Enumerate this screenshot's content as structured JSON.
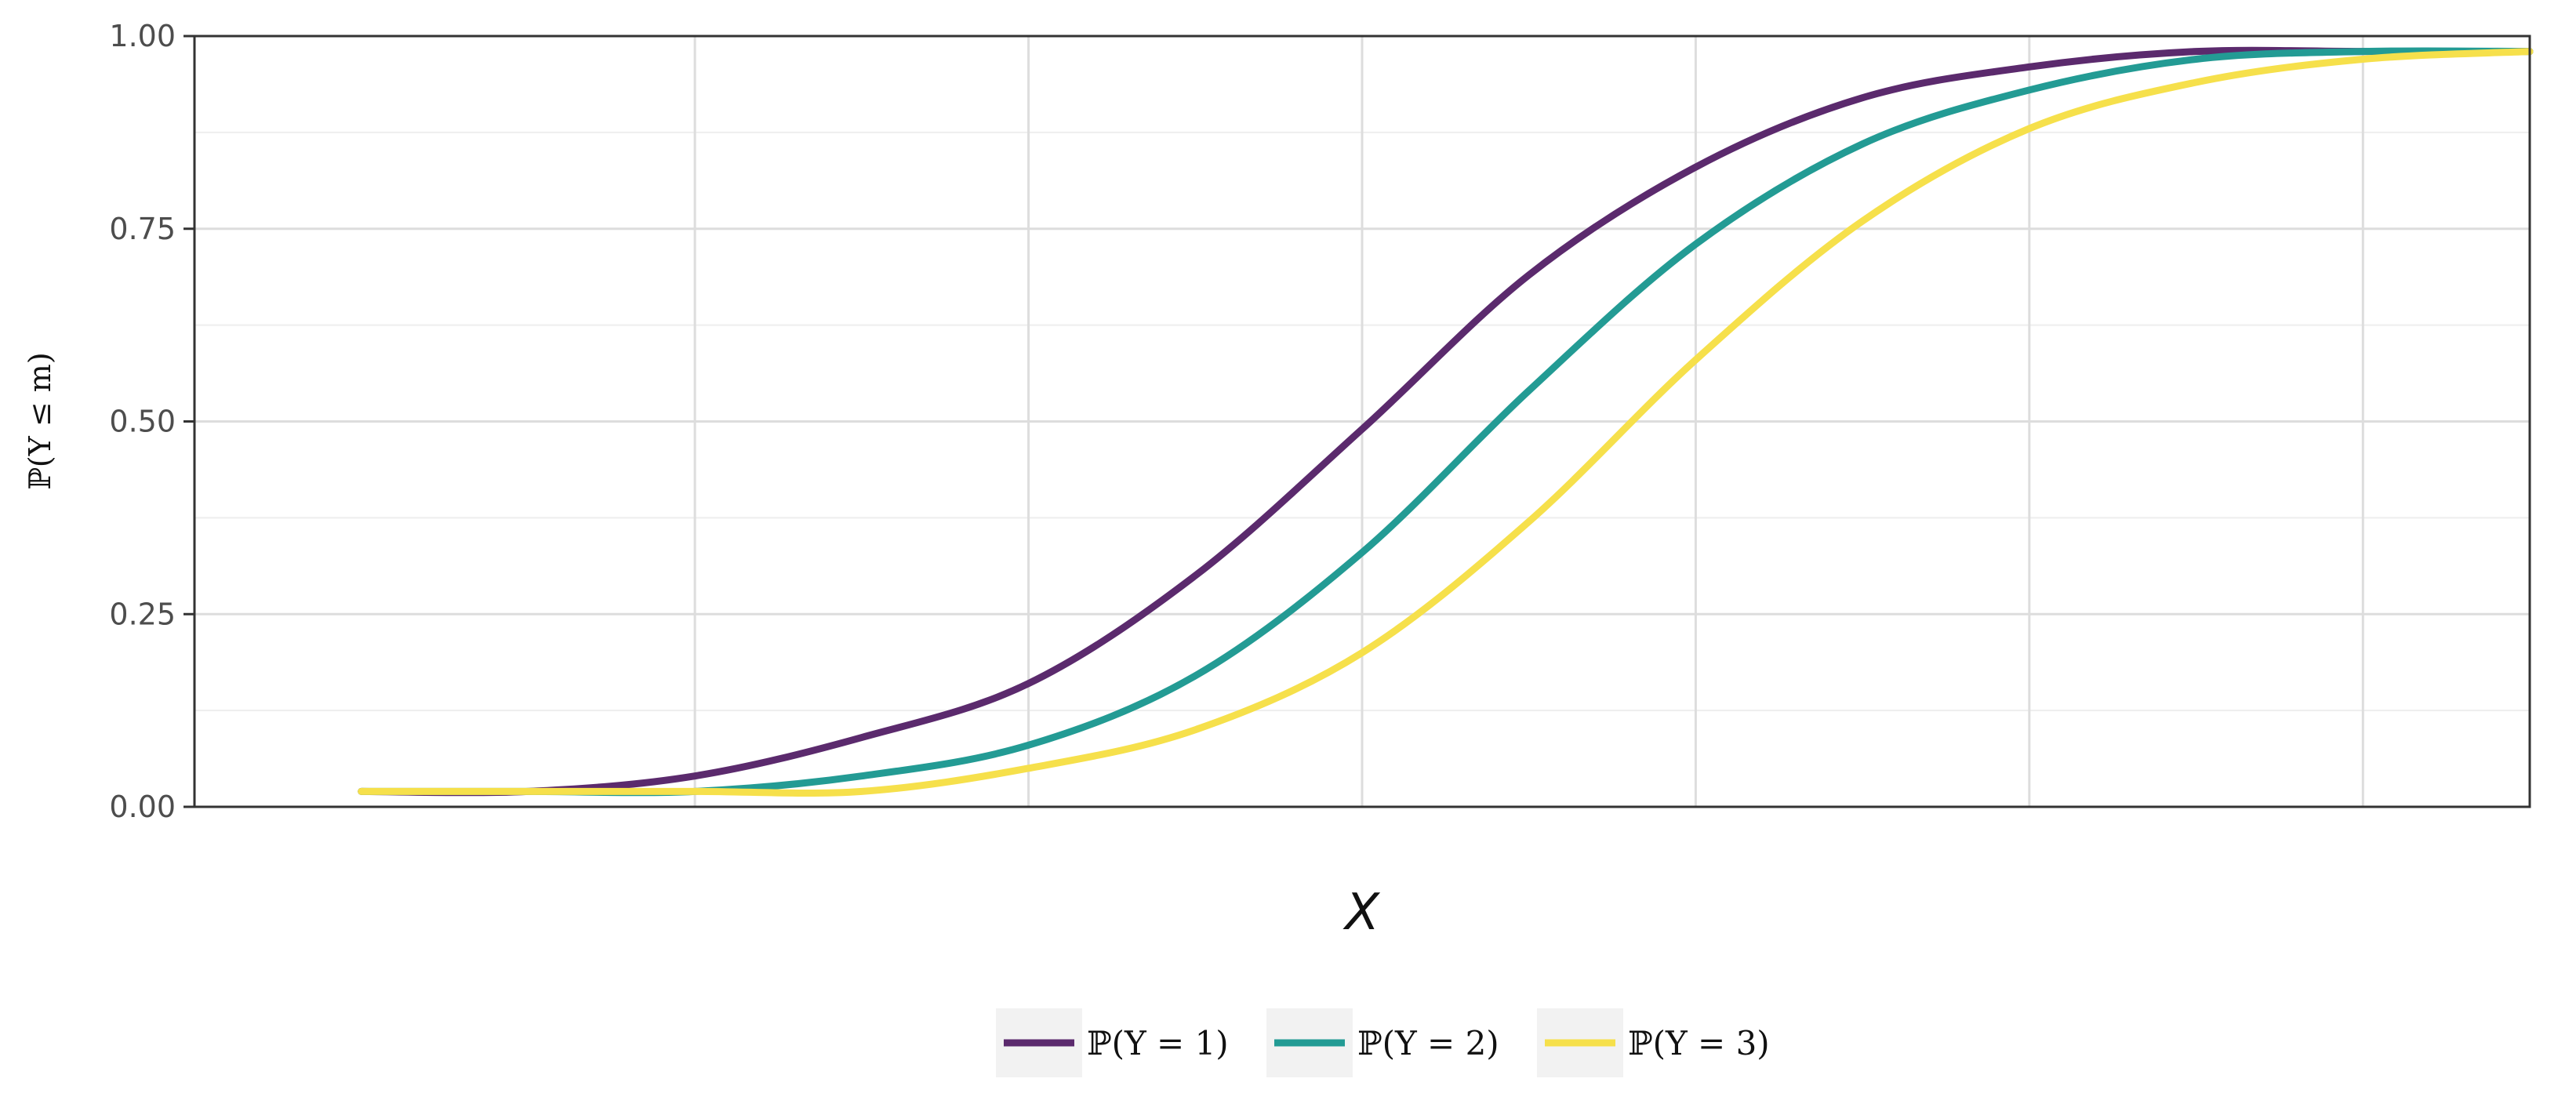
{
  "chart_data": {
    "type": "line",
    "title": "",
    "xlabel": "X",
    "ylabel": "ℙ(Y ≤ m)",
    "xlim": [
      -3.5,
      3.5
    ],
    "ylim": [
      0,
      1
    ],
    "y_ticks": [
      "0.00",
      "0.25",
      "0.50",
      "0.75",
      "1.00"
    ],
    "x_ticks": [],
    "grid": true,
    "legend_position": "bottom",
    "series": [
      {
        "name": "ℙ(Y = 1)",
        "color": "#5b2a6d",
        "x": [
          -3.0,
          -2.5,
          -2.0,
          -1.5,
          -1.0,
          -0.5,
          0.0,
          0.5,
          1.0,
          1.5,
          2.0,
          2.5,
          3.0,
          3.5
        ],
        "y": [
          0.02,
          0.02,
          0.04,
          0.09,
          0.16,
          0.3,
          0.49,
          0.69,
          0.83,
          0.92,
          0.96,
          0.98,
          0.98,
          0.98
        ]
      },
      {
        "name": "ℙ(Y = 2)",
        "color": "#239b94",
        "x": [
          -3.0,
          -2.5,
          -2.0,
          -1.5,
          -1.0,
          -0.5,
          0.0,
          0.5,
          1.0,
          1.5,
          2.0,
          2.5,
          3.0,
          3.5
        ],
        "y": [
          0.02,
          0.02,
          0.02,
          0.04,
          0.08,
          0.17,
          0.33,
          0.54,
          0.73,
          0.86,
          0.93,
          0.97,
          0.98,
          0.98
        ]
      },
      {
        "name": "ℙ(Y = 3)",
        "color": "#f6e04b",
        "x": [
          -3.0,
          -2.5,
          -2.0,
          -1.5,
          -1.0,
          -0.5,
          0.0,
          0.5,
          1.0,
          1.5,
          2.0,
          2.5,
          3.0,
          3.5
        ],
        "y": [
          0.02,
          0.02,
          0.02,
          0.02,
          0.05,
          0.1,
          0.2,
          0.37,
          0.58,
          0.76,
          0.88,
          0.94,
          0.97,
          0.98
        ]
      }
    ]
  }
}
